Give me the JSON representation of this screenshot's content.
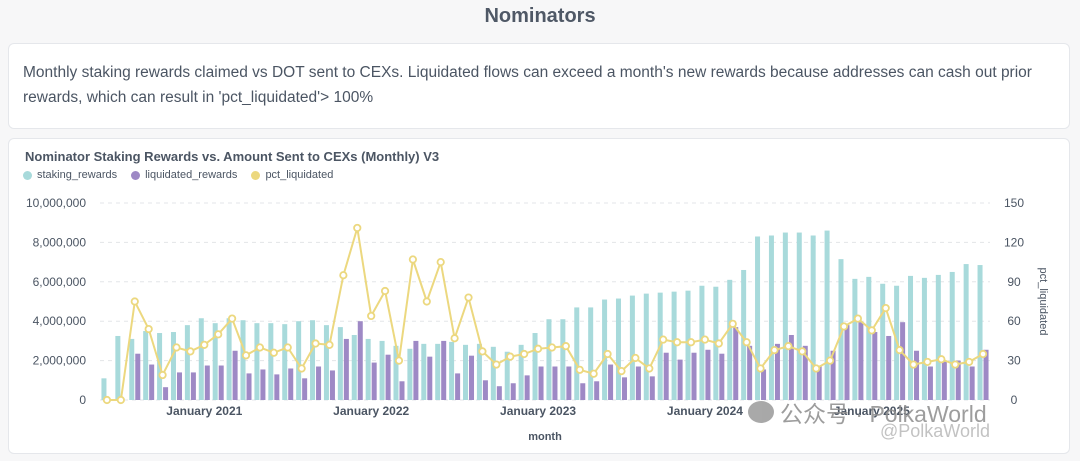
{
  "page": {
    "title": "Nominators",
    "description": "Monthly staking rewards claimed vs DOT sent to CEXs. Liquidated flows can exceed a month's new rewards because addresses can cash out prior rewards, which can result in 'pct_liquidated'> 100%"
  },
  "watermark": {
    "line1": "公众号 · PolkaWorld",
    "line2": "@PolkaWorld"
  },
  "chart_data": {
    "type": "bar",
    "title": "Nominator Staking Rewards vs. Amount Sent to CEXs (Monthly) V3",
    "xlabel": "month",
    "ylabel": "",
    "y2label": "pct_liquidated",
    "ylim": [
      0,
      10000000
    ],
    "y2lim": [
      0,
      150
    ],
    "yticks": [
      "0",
      "2,000,000",
      "4,000,000",
      "6,000,000",
      "8,000,000",
      "10,000,000"
    ],
    "y2ticks": [
      "0",
      "30",
      "60",
      "90",
      "120",
      "150"
    ],
    "xtick_labels": [
      {
        "label": "January 2021",
        "index": 7
      },
      {
        "label": "January 2022",
        "index": 19
      },
      {
        "label": "January 2023",
        "index": 31
      },
      {
        "label": "January 2024",
        "index": 43
      },
      {
        "label": "January 2025",
        "index": 55
      }
    ],
    "grid": "horizontal-dashed",
    "legend_position": "top-left",
    "colors": {
      "staking_rewards": "#a8dadb",
      "liquidated_rewards": "#9e89c5",
      "pct_liquidated": "#ecd87f"
    },
    "series": [
      {
        "name": "staking_rewards",
        "kind": "bar",
        "values": [
          1100000,
          3250000,
          3100000,
          3500000,
          3400000,
          3450000,
          3800000,
          4150000,
          3900000,
          4150000,
          4050000,
          3900000,
          3900000,
          3850000,
          4000000,
          4050000,
          3800000,
          3700000,
          3300000,
          3100000,
          3000000,
          2750000,
          2600000,
          2850000,
          2850000,
          2950000,
          2800000,
          2850000,
          2700000,
          2450000,
          2800000,
          3400000,
          4100000,
          4100000,
          4700000,
          4700000,
          5100000,
          5150000,
          5300000,
          5400000,
          5450000,
          5500000,
          5550000,
          5800000,
          5750000,
          6100000,
          6600000,
          8300000,
          8350000,
          8500000,
          8500000,
          8350000,
          8600000,
          7150000,
          6150000,
          6250000,
          5900000,
          5800000,
          6300000,
          6200000,
          6350000,
          6500000,
          6900000,
          6850000
        ]
      },
      {
        "name": "liquidated_rewards",
        "kind": "bar",
        "values": [
          0,
          0,
          2350000,
          1800000,
          650000,
          1400000,
          1400000,
          1750000,
          1750000,
          2500000,
          1350000,
          1550000,
          1300000,
          1600000,
          1100000,
          1700000,
          1500000,
          3100000,
          4000000,
          1900000,
          2300000,
          950000,
          3000000,
          2200000,
          3000000,
          1350000,
          2250000,
          1000000,
          700000,
          850000,
          1250000,
          1700000,
          1700000,
          1700000,
          850000,
          950000,
          1800000,
          1150000,
          1700000,
          1200000,
          2400000,
          2050000,
          2400000,
          2550000,
          2350000,
          3700000,
          2750000,
          1550000,
          2850000,
          3300000,
          2750000,
          1750000,
          2500000,
          3800000,
          3950000,
          3450000,
          3250000,
          3950000,
          2500000,
          1700000,
          1950000,
          2000000,
          1700000,
          2550000
        ]
      },
      {
        "name": "pct_liquidated",
        "kind": "line",
        "axis": "right",
        "values": [
          0,
          0,
          75,
          54,
          19,
          40,
          37,
          42,
          50,
          62,
          34,
          40,
          36,
          40,
          24,
          43,
          42,
          95,
          131,
          64,
          83,
          30,
          107,
          75,
          105,
          47,
          78,
          37,
          27,
          33,
          35,
          39,
          40,
          41,
          23,
          20,
          35,
          22,
          32,
          24,
          46,
          44,
          44,
          46,
          43,
          58,
          44,
          24,
          38,
          41,
          37,
          24,
          30,
          56,
          62,
          53,
          70,
          38,
          27,
          29,
          31,
          27,
          29,
          35
        ]
      }
    ]
  }
}
